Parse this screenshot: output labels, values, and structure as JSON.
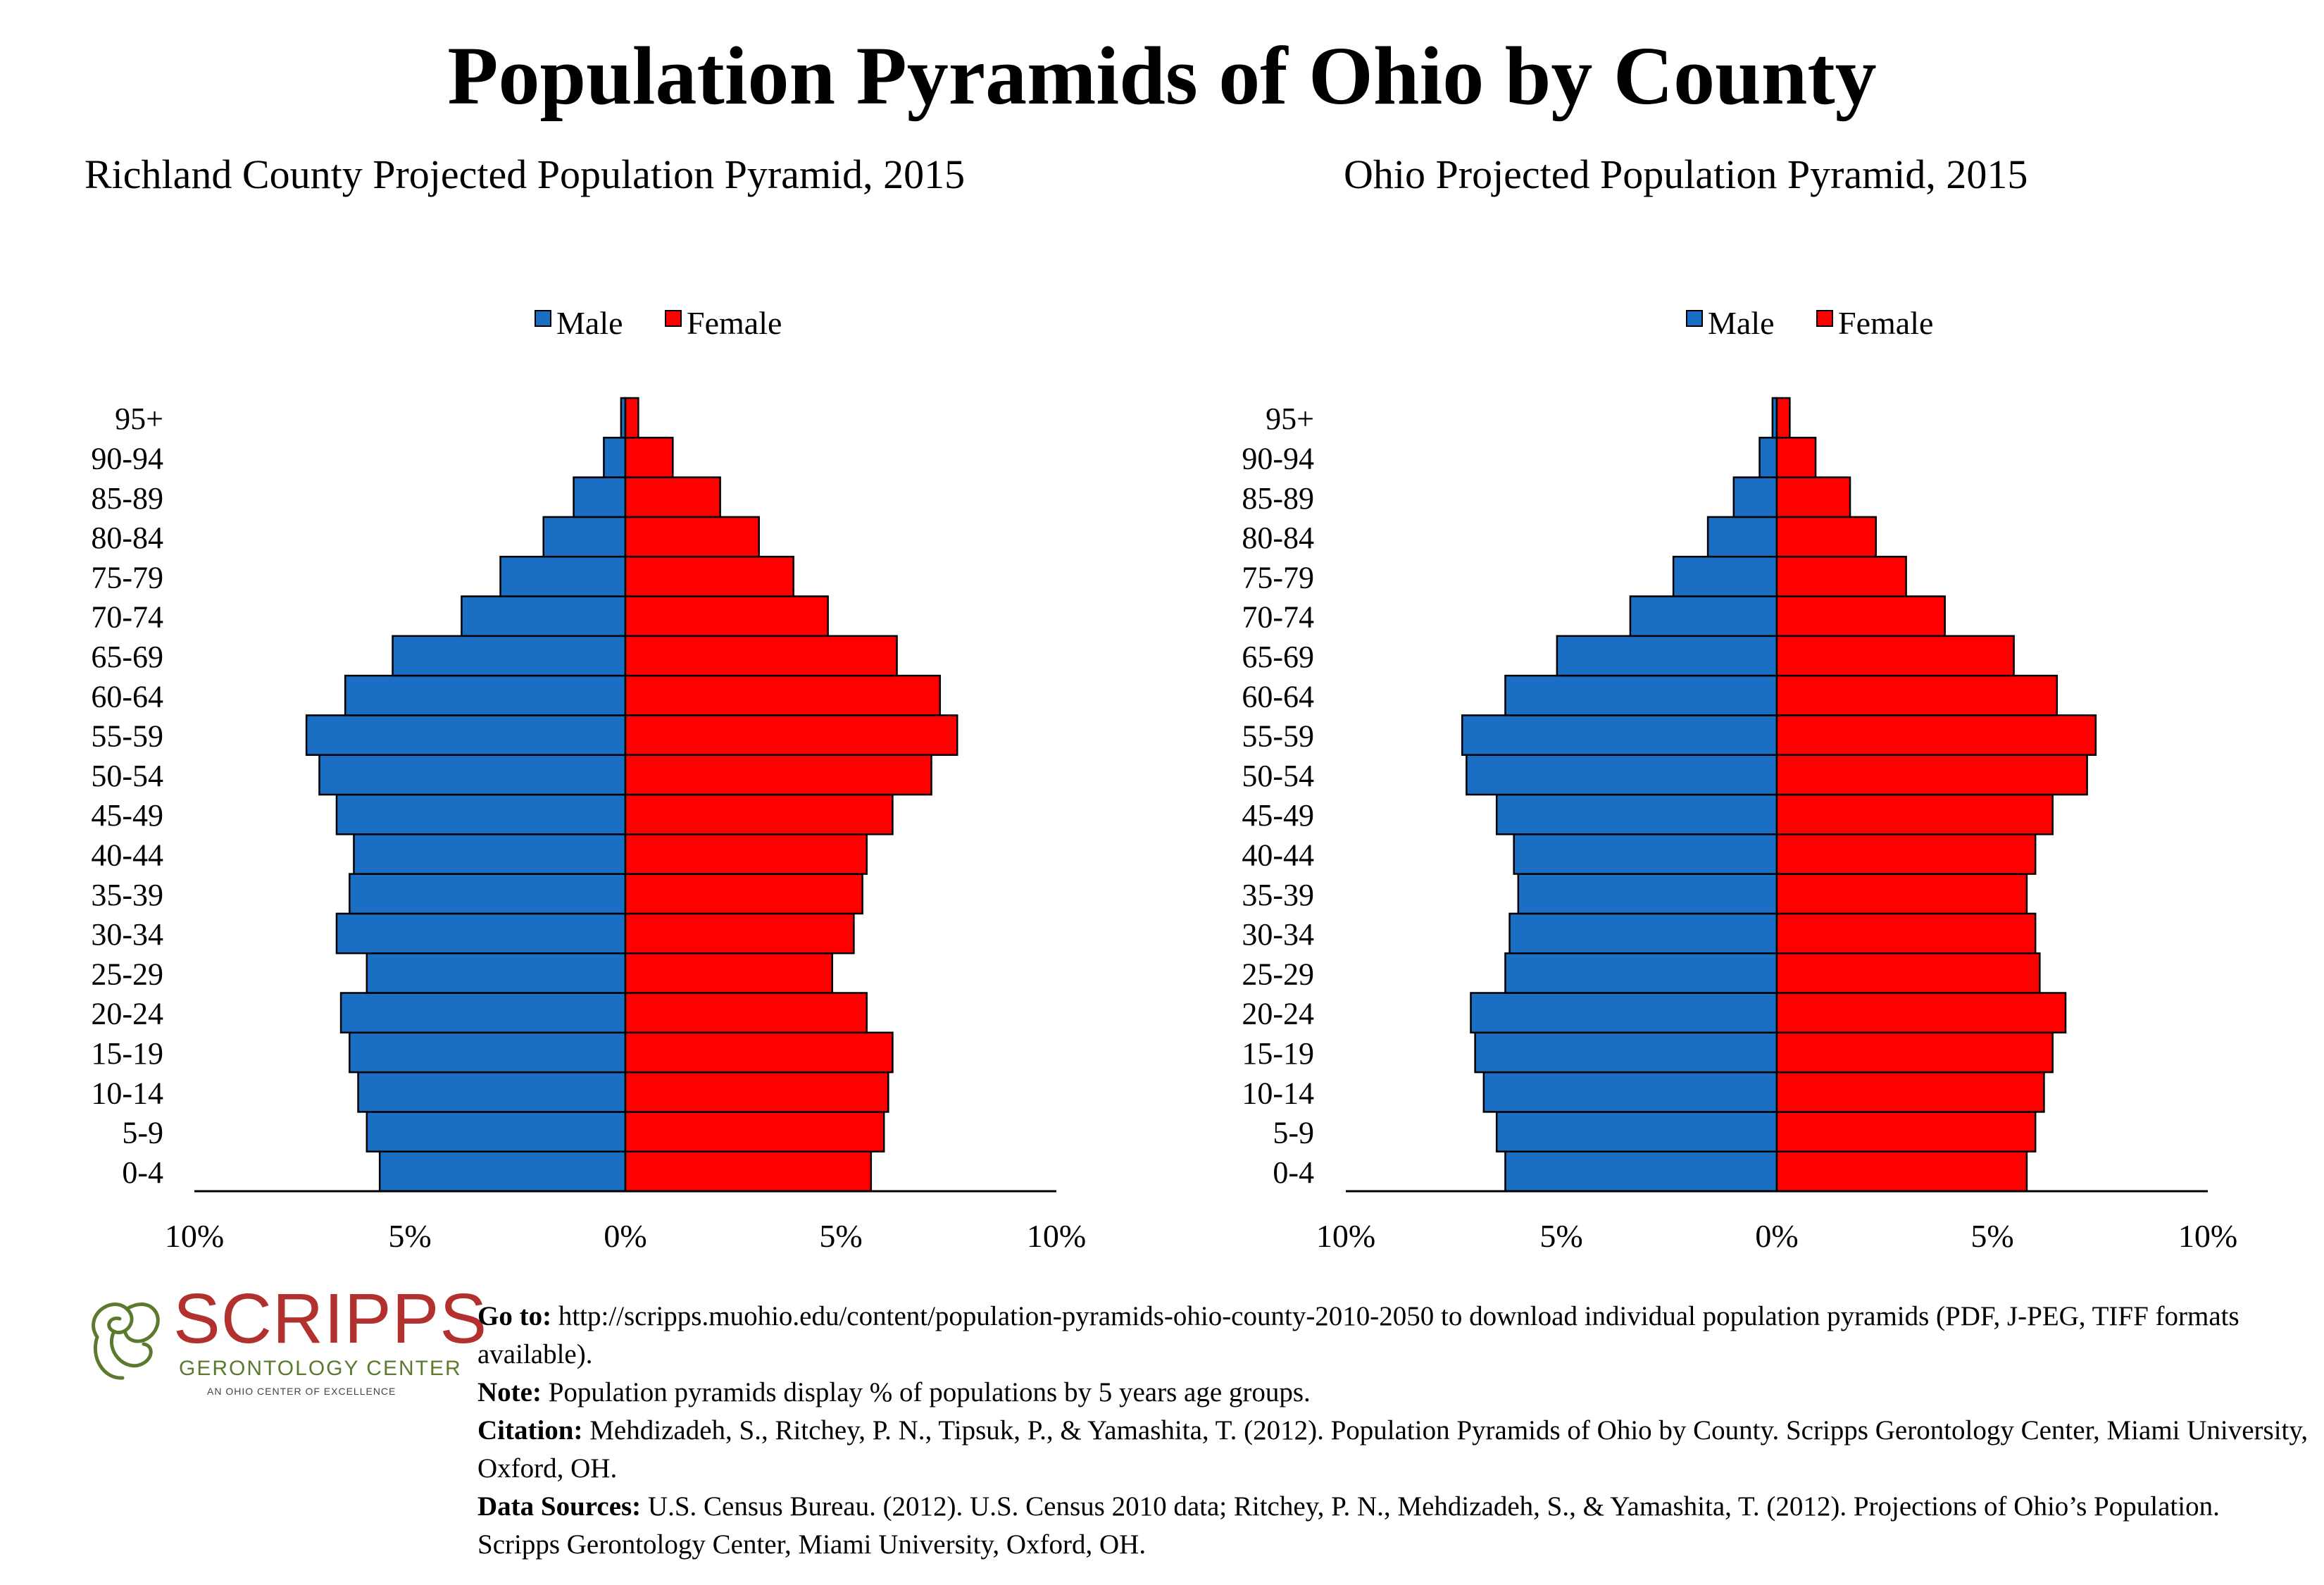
{
  "title": "Population Pyramids of Ohio by County",
  "legend": {
    "male": "Male",
    "female": "Female"
  },
  "colors": {
    "male": "#1a6fc4",
    "female": "#ff0000"
  },
  "x_ticks": [
    "10%",
    "5%",
    "0%",
    "5%",
    "10%"
  ],
  "chart_data": [
    {
      "type": "bar",
      "title": "Richland County Projected Population Pyramid, 2015",
      "categories": [
        "0-4",
        "5-9",
        "10-14",
        "15-19",
        "20-24",
        "25-29",
        "30-34",
        "35-39",
        "40-44",
        "45-49",
        "50-54",
        "55-59",
        "60-64",
        "65-69",
        "70-74",
        "75-79",
        "80-84",
        "85-89",
        "90-94",
        "95+"
      ],
      "series": [
        {
          "name": "Male",
          "values": [
            5.7,
            6.0,
            6.2,
            6.4,
            6.6,
            6.0,
            6.7,
            6.4,
            6.3,
            6.7,
            7.1,
            7.4,
            6.5,
            5.4,
            3.8,
            2.9,
            1.9,
            1.2,
            0.5,
            0.1
          ]
        },
        {
          "name": "Female",
          "values": [
            5.7,
            6.0,
            6.1,
            6.2,
            5.6,
            4.8,
            5.3,
            5.5,
            5.6,
            6.2,
            7.1,
            7.7,
            7.3,
            6.3,
            4.7,
            3.9,
            3.1,
            2.2,
            1.1,
            0.3
          ]
        }
      ],
      "xlim": [
        -10,
        10
      ],
      "legend_position": "top-center"
    },
    {
      "type": "bar",
      "title": "Ohio Projected Population Pyramid, 2015",
      "categories": [
        "0-4",
        "5-9",
        "10-14",
        "15-19",
        "20-24",
        "25-29",
        "30-34",
        "35-39",
        "40-44",
        "45-49",
        "50-54",
        "55-59",
        "60-64",
        "65-69",
        "70-74",
        "75-79",
        "80-84",
        "85-89",
        "90-94",
        "95+"
      ],
      "series": [
        {
          "name": "Male",
          "values": [
            6.3,
            6.5,
            6.8,
            7.0,
            7.1,
            6.3,
            6.2,
            6.0,
            6.1,
            6.5,
            7.2,
            7.3,
            6.3,
            5.1,
            3.4,
            2.4,
            1.6,
            1.0,
            0.4,
            0.1
          ]
        },
        {
          "name": "Female",
          "values": [
            5.8,
            6.0,
            6.2,
            6.4,
            6.7,
            6.1,
            6.0,
            5.8,
            6.0,
            6.4,
            7.2,
            7.4,
            6.5,
            5.5,
            3.9,
            3.0,
            2.3,
            1.7,
            0.9,
            0.3
          ]
        }
      ],
      "xlim": [
        -10,
        10
      ],
      "legend_position": "top-center"
    }
  ],
  "logo": {
    "name": "SCRIPPS",
    "sub": "GERONTOLOGY CENTER",
    "tagline": "AN OHIO CENTER OF EXCELLENCE"
  },
  "notes": {
    "goto_label": "Go to:",
    "goto_text": " http://scripps.muohio.edu/content/population-pyramids-ohio-county-2010-2050 to download individual population pyramids (PDF, J-PEG, TIFF formats available).",
    "note_label": "Note:",
    "note_text": " Population pyramids display % of populations by 5 years age groups.",
    "citation_label": "Citation:",
    "citation_text": " Mehdizadeh, S., Ritchey, P. N., Tipsuk, P., & Yamashita, T. (2012). Population Pyramids of Ohio by County. Scripps Gerontology Center, Miami University, Oxford, OH.",
    "sources_label": "Data Sources:",
    "sources_text": " U.S. Census Bureau. (2012). U.S. Census 2010 data; Ritchey, P. N., Mehdizadeh, S., & Yamashita, T. (2012). Projections of Ohio’s Population. Scripps Gerontology Center, Miami University, Oxford, OH."
  }
}
